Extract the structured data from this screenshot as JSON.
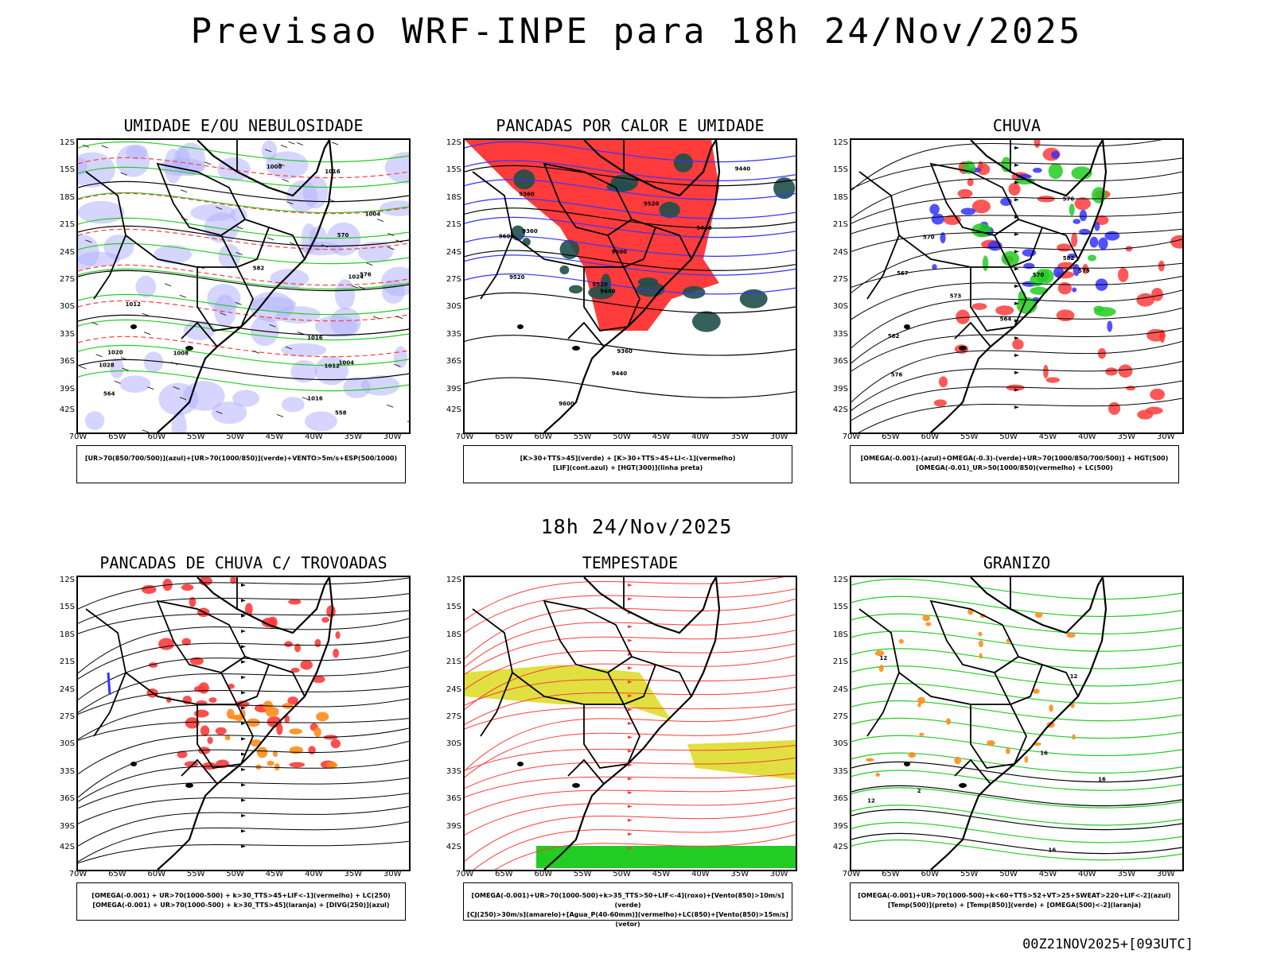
{
  "header": {
    "title": "Previsao WRF-INPE  para 18h 24/Nov/2025",
    "subtitle": "18h 24/Nov/2025",
    "run_stamp": "00Z21NOV2025+[093UTC]"
  },
  "axes": {
    "lat_labels": [
      "12S",
      "15S",
      "18S",
      "21S",
      "24S",
      "27S",
      "30S",
      "33S",
      "36S",
      "39S",
      "42S"
    ],
    "lon_labels": [
      "70W",
      "65W",
      "60W",
      "55W",
      "50W",
      "45W",
      "40W",
      "35W",
      "30W"
    ]
  },
  "colors": {
    "blue_fill": "#b3b3ff",
    "green_contour": "#22cc22",
    "red_area": "#ff3b3b",
    "dark_teal": "#1f4f4a",
    "yellow_area": "#e0e040",
    "orange_area": "#ff8c1a",
    "contour_blue": "#3333ff"
  },
  "panels": [
    {
      "title": "UMIDADE E/OU NEBULOSIDADE",
      "legend": [
        "[UR>70(850/700/500)](azul)+[UR>70(1000/850)](verde)+VENTO>5m/s+ESP(500/1000)"
      ],
      "labels": [
        "1004",
        "1004",
        "1008",
        "1008",
        "1012",
        "1012",
        "1016",
        "1016",
        "1020",
        "1024",
        "1028",
        "1016",
        "570",
        "576",
        "582",
        "564",
        "558"
      ]
    },
    {
      "title": "PANCADAS POR CALOR E UMIDADE",
      "legend": [
        "[K>30+TTS>45](verde)  +  [K>30+TTS>45+LI<-1](vermelho)",
        "[LIF](cont.azul)  +  [HGT(300)](linha preta)"
      ],
      "labels": [
        "9600",
        "9600",
        "9600",
        "9520",
        "9520",
        "9520",
        "9440",
        "9440",
        "9440",
        "9440",
        "9360",
        "9360",
        "9360"
      ]
    },
    {
      "title": "CHUVA",
      "legend": [
        "[OMEGA(-0.001)-(azul)+OMEGA(-0.3)-(verde)+UR>70(1000/850/700/500)]  +  HGT(500)",
        "[OMEGA(-0.01)_UR>50(1000/850)(vermelho)  +  LC(500)"
      ],
      "labels": [
        "582",
        "582",
        "576",
        "576",
        "573",
        "570",
        "570",
        "567",
        "564",
        "579"
      ]
    },
    {
      "title": "PANCADAS DE CHUVA C/ TROVOADAS",
      "legend": [
        "[OMEGA(-0.001)  +  UR>70(1000-500)  +  k>30_TTS>45+LIF<-1](vermelho)  +  LC(250)",
        "[OMEGA(-0.001)  +  UR>70(1000-500)  +  k>30_TTS>45](laranja)  +  [DIVG(250)](azul)"
      ],
      "labels": []
    },
    {
      "title": "TEMPESTADE",
      "legend": [
        "[OMEGA(-0.001)+UR>70(1000-500)+k>35_TTS>50+LIF<-4](roxo)+[Vento(850)>10m/s](verde)",
        "[CJ(250)>30m/s](amarelo)+[Agua_P(40-60mm)](vermelho)+LC(850)+[Vento(850)>15m/s](vetor)"
      ],
      "labels": []
    },
    {
      "title": "GRANIZO",
      "legend": [
        "[OMEGA(-0.001)+UR>70(1000-500)+k<60+TTS>52+VT>25+SWEAT>220+LIF<-2](azul)",
        "[Temp(500)](preto)  +  [Temp(850)](verde)  +  [OMEGA(500)<-2](laranja)"
      ],
      "labels": [
        "16",
        "16",
        "16",
        "12",
        "12",
        "12",
        "2"
      ]
    }
  ]
}
